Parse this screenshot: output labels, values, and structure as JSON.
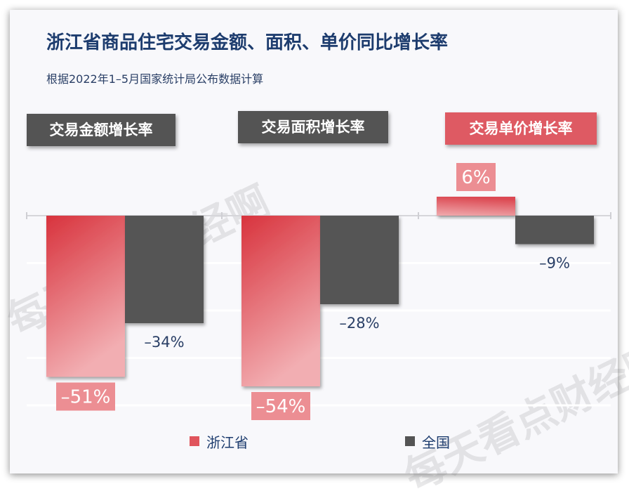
{
  "title": "浙江省商品住宅交易金额、面积、单价同比增长率",
  "subtitle": "根据2022年1–5月国家统计局公布数据计算",
  "panels": [
    {
      "label": "交易金额增长率",
      "style": "dark"
    },
    {
      "label": "交易面积增长率",
      "style": "dark"
    },
    {
      "label": "交易单价增长率",
      "style": "red"
    }
  ],
  "legend": {
    "zhejiang": "浙江省",
    "national": "全国"
  },
  "watermark": "每天看点财经啊",
  "colors": {
    "zhejiang": "#e0555d",
    "zhejiang_light": "#f0a9ad",
    "national": "#545454",
    "title": "#1d3c6e"
  },
  "chart_data": {
    "type": "bar",
    "categories": [
      "交易金额增长率",
      "交易面积增长率",
      "交易单价增长率"
    ],
    "series": [
      {
        "name": "浙江省",
        "values": [
          -51,
          -54,
          6
        ],
        "labels": [
          "–51%",
          "–54%",
          "6%"
        ]
      },
      {
        "name": "全国",
        "values": [
          -34,
          -28,
          -9
        ],
        "labels": [
          "–34%",
          "–28%",
          "–9%"
        ]
      }
    ],
    "ylim": [
      -60,
      6
    ],
    "grid": true,
    "legend_position": "bottom"
  }
}
